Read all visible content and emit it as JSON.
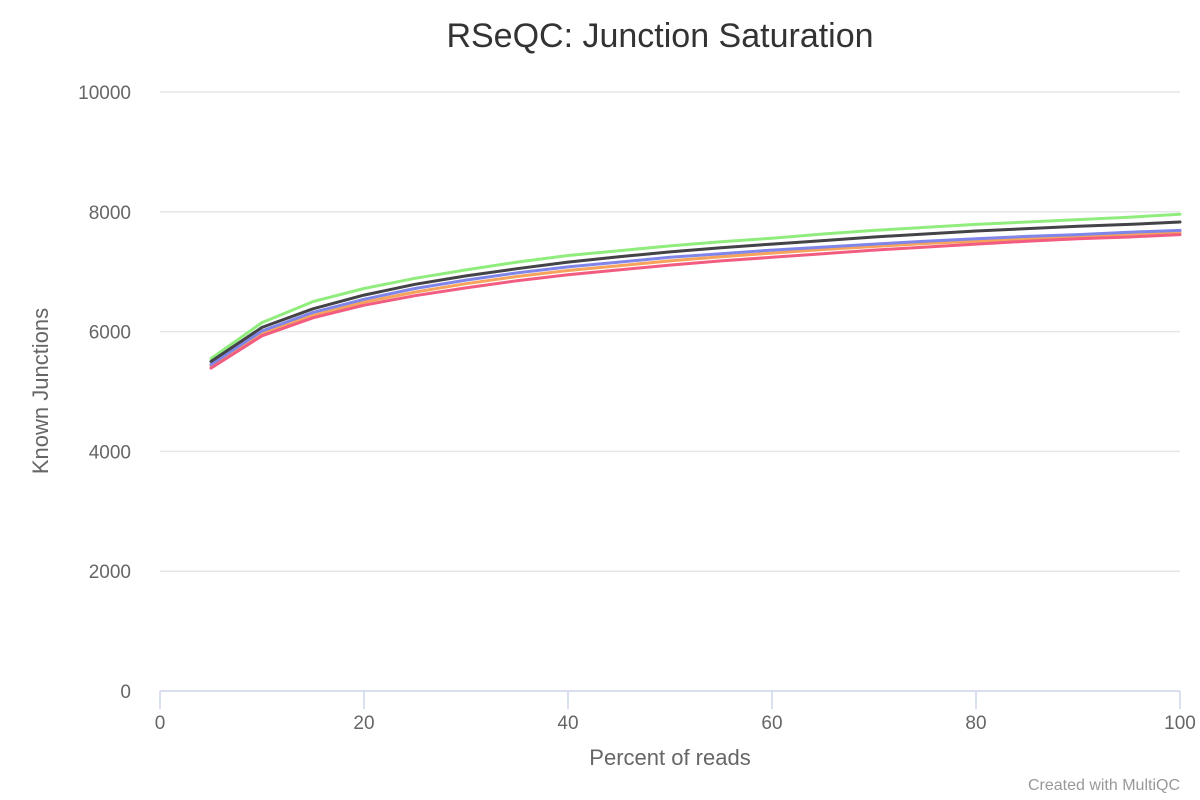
{
  "chart_data": {
    "type": "line",
    "title": "RSeQC: Junction Saturation",
    "xlabel": "Percent of reads",
    "ylabel": "Known Junctions",
    "xlim": [
      0,
      100
    ],
    "ylim": [
      0,
      10000
    ],
    "x_ticks": [
      0,
      20,
      40,
      60,
      80,
      100
    ],
    "y_ticks": [
      0,
      2000,
      4000,
      6000,
      8000,
      10000
    ],
    "x_tick_labels": [
      "0",
      "20",
      "40",
      "60",
      "80",
      "100"
    ],
    "y_tick_labels": [
      "0",
      "2000",
      "4000",
      "6000",
      "8000",
      "10000"
    ],
    "grid": true,
    "legend": "none",
    "credit": "Created with MultiQC",
    "x": [
      5,
      10,
      15,
      20,
      25,
      30,
      35,
      40,
      45,
      50,
      55,
      60,
      65,
      70,
      75,
      80,
      85,
      90,
      95,
      100
    ],
    "series": [
      {
        "color": "#90ed7d",
        "values": [
          5550,
          6150,
          6500,
          6720,
          6890,
          7030,
          7160,
          7270,
          7350,
          7430,
          7500,
          7560,
          7630,
          7690,
          7740,
          7790,
          7830,
          7870,
          7910,
          7960
        ]
      },
      {
        "color": "#f7a35c",
        "values": [
          5420,
          5970,
          6270,
          6490,
          6660,
          6800,
          6920,
          7020,
          7100,
          7180,
          7250,
          7310,
          7370,
          7420,
          7470,
          7510,
          7550,
          7590,
          7630,
          7660
        ]
      },
      {
        "color": "#8085e9",
        "values": [
          5450,
          6010,
          6320,
          6540,
          6720,
          6860,
          6980,
          7080,
          7160,
          7240,
          7300,
          7360,
          7410,
          7460,
          7510,
          7550,
          7590,
          7620,
          7660,
          7690
        ]
      },
      {
        "color": "#434348",
        "values": [
          5500,
          6070,
          6380,
          6610,
          6790,
          6930,
          7050,
          7160,
          7250,
          7330,
          7400,
          7460,
          7520,
          7580,
          7630,
          7680,
          7720,
          7760,
          7790,
          7830
        ]
      },
      {
        "color": "#f15c80",
        "values": [
          5390,
          5930,
          6230,
          6440,
          6600,
          6730,
          6850,
          6950,
          7030,
          7110,
          7180,
          7240,
          7300,
          7360,
          7410,
          7460,
          7510,
          7550,
          7580,
          7620
        ]
      }
    ]
  }
}
